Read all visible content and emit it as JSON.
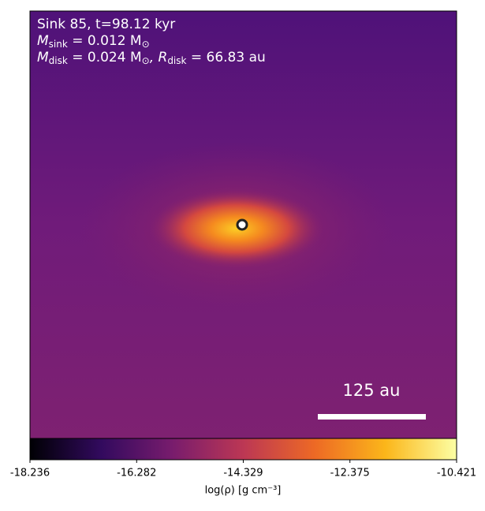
{
  "chart_data": {
    "type": "image",
    "annotations": [
      [
        "Sink 85, t=98.12 kyr"
      ],
      [
        "M",
        {
          "sub": "sink"
        },
        " = 0.012 M",
        {
          "sub": "⊙"
        }
      ],
      [
        "M",
        {
          "sub": "disk"
        },
        " = 0.024 M",
        {
          "sub": "⊙"
        },
        ", R",
        {
          "sub": "disk"
        },
        " = 66.83 au"
      ]
    ],
    "scalebar_label": "125 au",
    "colorbar": {
      "label": "log(ρ) [g cm⁻³]",
      "lim": [
        -18.236,
        -10.421
      ],
      "ticks": [
        -18.236,
        -16.282,
        -14.329,
        -12.375,
        -10.421
      ],
      "colormap": [
        "#000004",
        "#320a5e",
        "#781c6d",
        "#bc3754",
        "#ed6925",
        "#fbb61a",
        "#fcffa4"
      ]
    }
  }
}
